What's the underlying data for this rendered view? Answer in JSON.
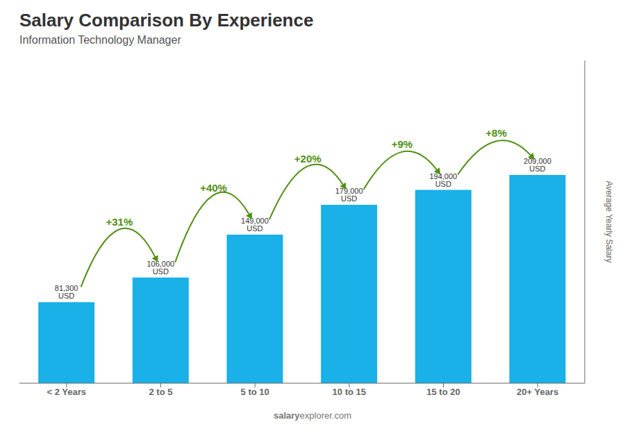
{
  "chart_data": {
    "type": "bar",
    "title": "Salary Comparison By Experience",
    "subtitle": "Information Technology Manager",
    "categories": [
      "< 2 Years",
      "2 to 5",
      "5 to 10",
      "10 to 15",
      "15 to 20",
      "20+ Years"
    ],
    "values": [
      81300,
      106000,
      149000,
      179000,
      194000,
      209000
    ],
    "value_labels": [
      "81,300 USD",
      "106,000 USD",
      "149,000 USD",
      "179,000 USD",
      "194,000 USD",
      "209,000 USD"
    ],
    "data_labels": true,
    "ylabel": "Average Yearly Salary",
    "ylim": [
      0,
      323950
    ],
    "tick_labels": "x",
    "grid": false,
    "color": "#1ab0e8",
    "annotations": [
      {
        "text": "+31%",
        "category": "2 to 5"
      },
      {
        "text": "+40%",
        "category": "5 to 10"
      },
      {
        "text": "+20%",
        "category": "10 to 15"
      },
      {
        "text": "+9%",
        "category": "15 to 20"
      },
      {
        "text": "+8%",
        "category": "20+ Years"
      },
      {
        "text": "salary"
      },
      {
        "text": "explorer.com"
      }
    ]
  }
}
